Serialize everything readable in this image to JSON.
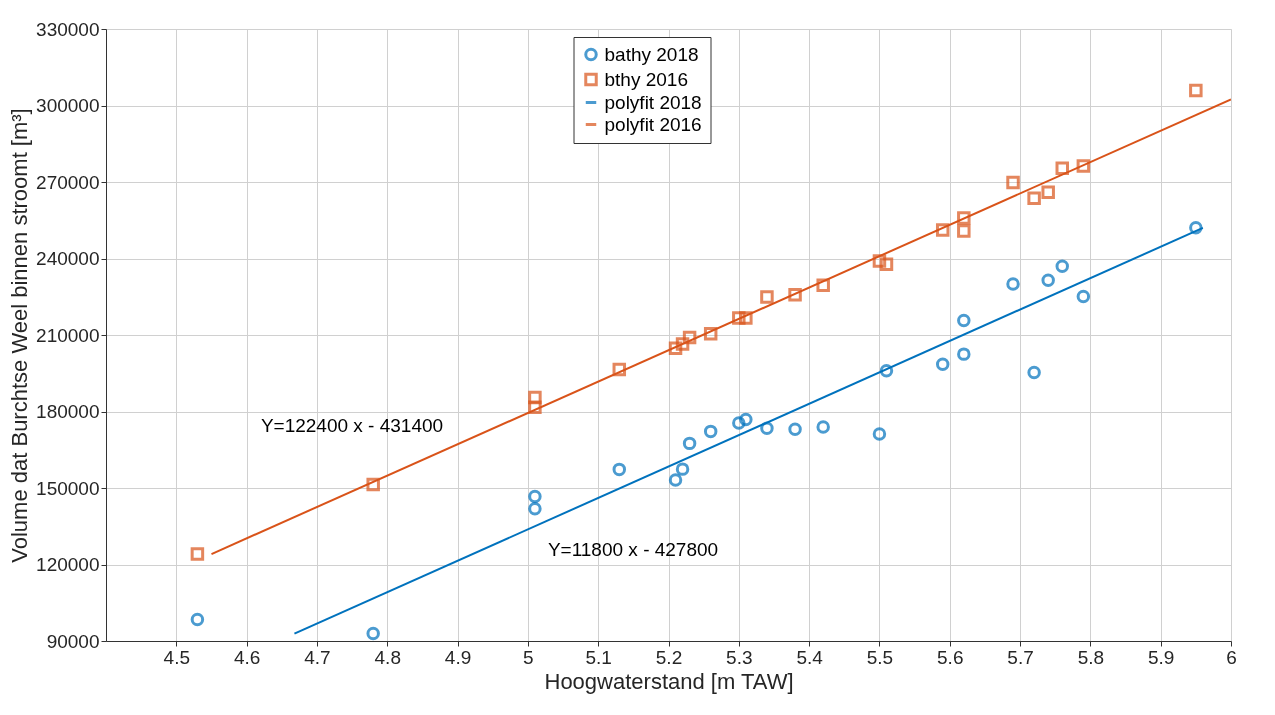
{
  "chart_data": {
    "type": "scatter",
    "xlabel": "Hoogwaterstand [m TAW]",
    "ylabel": "Volume dat Burchtse Weel binnen stroomt [m³]",
    "xlim": [
      4.4,
      6
    ],
    "xticks": [
      4.5,
      4.6,
      4.7,
      4.8,
      4.9,
      5,
      5.1,
      5.2,
      5.3,
      5.4,
      5.5,
      5.6,
      5.7,
      5.8,
      5.9,
      6
    ],
    "ylim": [
      90000,
      330000
    ],
    "yticks": [
      90000,
      120000,
      150000,
      180000,
      210000,
      240000,
      270000,
      300000,
      330000
    ],
    "grid": true,
    "legend": "top",
    "series": [
      {
        "name": "bathy 2018",
        "marker": "circle",
        "color": "#0072bd",
        "x": [
          4.53,
          4.78,
          5.01,
          5.01,
          5.13,
          5.21,
          5.22,
          5.23,
          5.26,
          5.3,
          5.31,
          5.34,
          5.38,
          5.42,
          5.5,
          5.51,
          5.59,
          5.62,
          5.62,
          5.69,
          5.72,
          5.74,
          5.76,
          5.79,
          5.95
        ],
        "values": [
          98400,
          92900,
          146700,
          141900,
          157300,
          153100,
          157400,
          167500,
          172200,
          175500,
          176900,
          173400,
          173000,
          173900,
          171200,
          196000,
          198500,
          202500,
          215700,
          230000,
          195300,
          231500,
          237000,
          225100,
          252100
        ]
      },
      {
        "name": "bthy 2016",
        "marker": "square",
        "color": "#d95319",
        "x": [
          4.53,
          4.78,
          5.01,
          5.01,
          5.13,
          5.21,
          5.22,
          5.23,
          5.26,
          5.3,
          5.31,
          5.34,
          5.38,
          5.42,
          5.5,
          5.51,
          5.59,
          5.62,
          5.62,
          5.69,
          5.72,
          5.74,
          5.76,
          5.79,
          5.95
        ],
        "values": [
          124100,
          151400,
          185500,
          181700,
          196500,
          204800,
          206500,
          209000,
          210500,
          216700,
          216700,
          224900,
          225800,
          229500,
          239000,
          237700,
          251200,
          255900,
          250800,
          269800,
          263600,
          266000,
          275400,
          276300,
          305900
        ]
      },
      {
        "name": "polyfit 2018",
        "type": "line",
        "line_style": "solid",
        "color": "#0072bd",
        "x": [
          4.668,
          5.96
        ],
        "values": [
          92900,
          252000
        ]
      },
      {
        "name": "polyfit 2016",
        "type": "line",
        "line_style": "solid",
        "color": "#d95319",
        "x": [
          4.55,
          6
        ],
        "values": [
          124100,
          302400
        ]
      }
    ],
    "annotations": [
      "Y=122400 x - 431400",
      "Y=11800 x - 427800"
    ]
  }
}
